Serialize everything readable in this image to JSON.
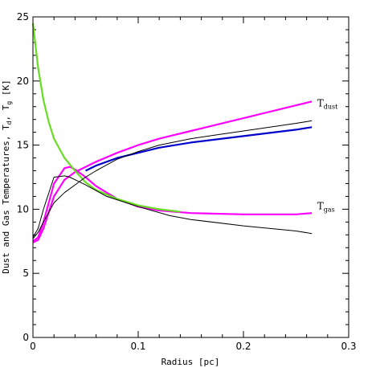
{
  "chart_data": {
    "type": "line",
    "xlabel": "Radius [pc]",
    "ylabel": "Dust and Gas Temperatures, T",
    "ylabel_sub1": "d",
    "ylabel_sep": ", T",
    "ylabel_sub2": "g",
    "ylabel_unit": " [K]",
    "xlim": [
      0,
      0.3
    ],
    "ylim": [
      0,
      25
    ],
    "x_ticks": [
      "0",
      "0.1",
      "0.2",
      "0.3"
    ],
    "y_ticks": [
      "0",
      "5",
      "10",
      "15",
      "20",
      "25"
    ],
    "annotations": [
      {
        "main": "T",
        "sub": "dust",
        "x": 0.27,
        "y": 18.0
      },
      {
        "main": "T",
        "sub": "gas",
        "x": 0.27,
        "y": 10.0
      }
    ],
    "series": [
      {
        "color": "#ff00ff",
        "x": [
          0,
          0.005,
          0.01,
          0.02,
          0.03,
          0.04,
          0.05,
          0.06,
          0.08,
          0.1,
          0.12,
          0.15,
          0.2,
          0.25,
          0.265
        ],
        "y": [
          7.4,
          7.6,
          8.5,
          11.0,
          12.3,
          12.9,
          13.3,
          13.7,
          14.4,
          15.0,
          15.5,
          16.1,
          17.1,
          18.1,
          18.4
        ]
      },
      {
        "color": "#0000cc",
        "x": [
          0.05,
          0.06,
          0.08,
          0.1,
          0.12,
          0.15,
          0.2,
          0.25,
          0.265
        ],
        "y": [
          13.0,
          13.4,
          14.0,
          14.4,
          14.8,
          15.2,
          15.7,
          16.2,
          16.4
        ]
      },
      {
        "color": "#ff00ff",
        "x": [
          0,
          0.005,
          0.01,
          0.02,
          0.03,
          0.035,
          0.04,
          0.05,
          0.06,
          0.08,
          0.1,
          0.12,
          0.15,
          0.2,
          0.25,
          0.265
        ],
        "y": [
          7.5,
          7.8,
          9.0,
          12.0,
          13.2,
          13.3,
          13.1,
          12.5,
          11.8,
          10.8,
          10.2,
          9.9,
          9.7,
          9.6,
          9.6,
          9.7
        ]
      },
      {
        "color": "#66dd22",
        "x": [
          0,
          0.005,
          0.01,
          0.015,
          0.02,
          0.03,
          0.04,
          0.05,
          0.06,
          0.08,
          0.1,
          0.12,
          0.14
        ],
        "y": [
          24.5,
          21.0,
          18.5,
          16.8,
          15.5,
          14.0,
          13.0,
          12.1,
          11.5,
          10.8,
          10.3,
          10.0,
          9.8
        ]
      },
      {
        "color": "#000000",
        "x": [
          0,
          0.005,
          0.01,
          0.02,
          0.03,
          0.04,
          0.05,
          0.06,
          0.08,
          0.1,
          0.12,
          0.15,
          0.2,
          0.25,
          0.265
        ],
        "y": [
          7.7,
          8.2,
          9.0,
          10.5,
          11.3,
          11.9,
          12.5,
          13.0,
          13.9,
          14.5,
          15.0,
          15.5,
          16.1,
          16.7,
          16.9
        ]
      },
      {
        "color": "#000000",
        "x": [
          0,
          0.005,
          0.01,
          0.02,
          0.03,
          0.035,
          0.04,
          0.05,
          0.07,
          0.1,
          0.13,
          0.15,
          0.2,
          0.25,
          0.265
        ],
        "y": [
          7.8,
          8.5,
          10.0,
          12.5,
          12.6,
          12.5,
          12.3,
          11.9,
          11.0,
          10.2,
          9.5,
          9.2,
          8.7,
          8.3,
          8.1
        ]
      }
    ]
  }
}
